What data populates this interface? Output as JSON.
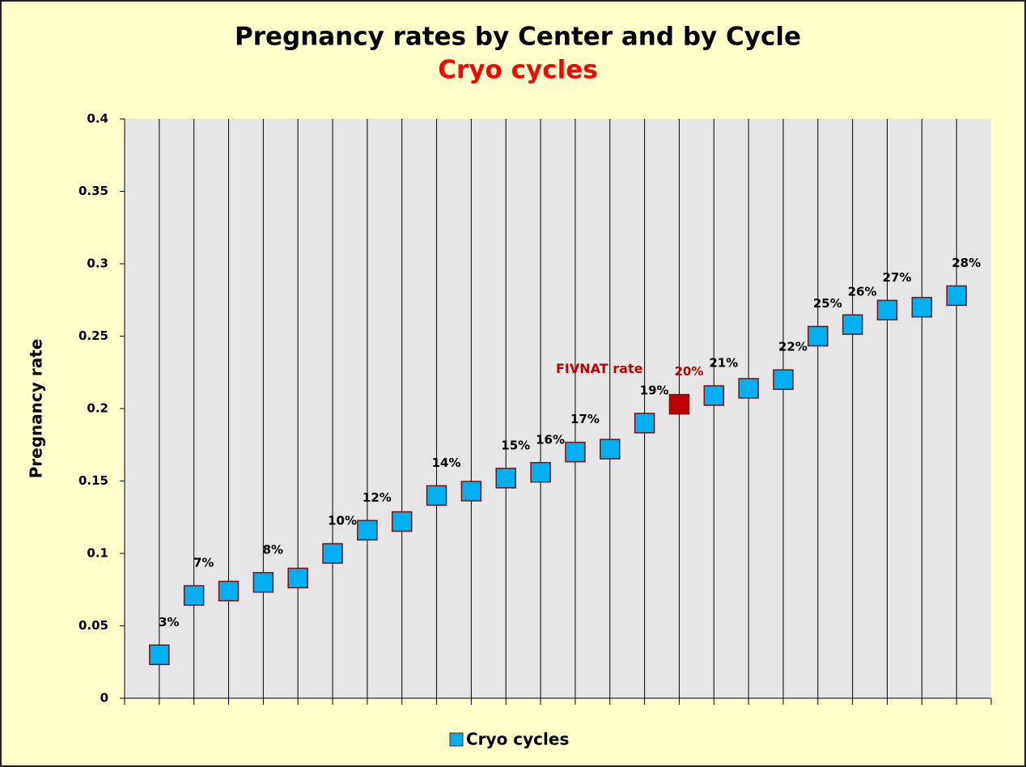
{
  "chart_data": {
    "type": "scatter",
    "title": "Pregnancy rates by Center and by Cycle",
    "subtitle": "Cryo cycles",
    "y_label": "Pregnancy rate",
    "annotation": "FIVNAT rate",
    "x": [
      1,
      2,
      3,
      4,
      5,
      6,
      7,
      8,
      9,
      10,
      11,
      12,
      13,
      14,
      15,
      16,
      17,
      18,
      19,
      20,
      21,
      22,
      23,
      24
    ],
    "xlim": [
      0,
      25
    ],
    "series": [
      {
        "name": "Cryo cycles",
        "color": "#00b0f0",
        "values": [
          0.03,
          0.071,
          0.074,
          0.08,
          0.083,
          0.1,
          0.116,
          0.122,
          0.14,
          0.143,
          0.152,
          0.156,
          0.17,
          0.172,
          0.19,
          0.203,
          0.209,
          0.214,
          0.22,
          0.25,
          0.258,
          0.268,
          0.27,
          0.278
        ],
        "value_labels": [
          "3%",
          "7%",
          null,
          "8%",
          null,
          "10%",
          "12%",
          null,
          "14%",
          null,
          "15%",
          "16%",
          "17%",
          null,
          "19%",
          "20%",
          "21%",
          null,
          "22%",
          "25%",
          "26%",
          "27%",
          null,
          "28%"
        ]
      }
    ],
    "highlight": {
      "index": 15,
      "color": "#c00000"
    },
    "ylim": [
      0,
      0.4
    ],
    "yticks": [
      0,
      0.05,
      0.1,
      0.15,
      0.2,
      0.25,
      0.3,
      0.35,
      0.4
    ],
    "grid": true
  }
}
